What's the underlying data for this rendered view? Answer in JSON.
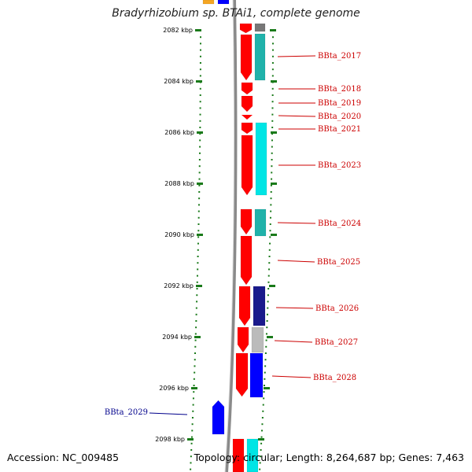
{
  "title": "Bradyrhizobium sp. BTAi1, complete genome",
  "footer": {
    "accession": "Accession: NC_009485",
    "summary": "Topology: circular; Length: 8,264,687 bp; Genes: 7,463"
  },
  "colors": {
    "backbone": "#8a8a8a",
    "ticks": "#1a7a1a",
    "forward_label": "#cc0000",
    "reverse_label": "#00008b",
    "red": "#ff0000",
    "cyan": "#00e5e5",
    "dark_cyan": "#20b2aa",
    "navy": "#1a1a8c",
    "blue": "#0000ff",
    "gray": "#bbbbbb",
    "orange": "#f5a623"
  },
  "ticks": [
    {
      "label": "2082 kbp"
    },
    {
      "label": "2084 kbp"
    },
    {
      "label": "2086 kbp"
    },
    {
      "label": "2088 kbp"
    },
    {
      "label": "2090 kbp"
    },
    {
      "label": "2092 kbp"
    },
    {
      "label": "2094 kbp"
    },
    {
      "label": "2096 kbp"
    },
    {
      "label": "2098 kbp"
    }
  ],
  "gene_labels": [
    {
      "name": "BBta_2017",
      "strand": "forward"
    },
    {
      "name": "BBta_2018",
      "strand": "forward"
    },
    {
      "name": "BBta_2019",
      "strand": "forward"
    },
    {
      "name": "BBta_2020",
      "strand": "forward"
    },
    {
      "name": "BBta_2021",
      "strand": "forward"
    },
    {
      "name": "BBta_2023",
      "strand": "forward"
    },
    {
      "name": "BBta_2024",
      "strand": "forward"
    },
    {
      "name": "BBta_2025",
      "strand": "forward"
    },
    {
      "name": "BBta_2026",
      "strand": "forward"
    },
    {
      "name": "BBta_2027",
      "strand": "forward"
    },
    {
      "name": "BBta_2028",
      "strand": "forward"
    },
    {
      "name": "BBta_2029",
      "strand": "reverse"
    }
  ]
}
